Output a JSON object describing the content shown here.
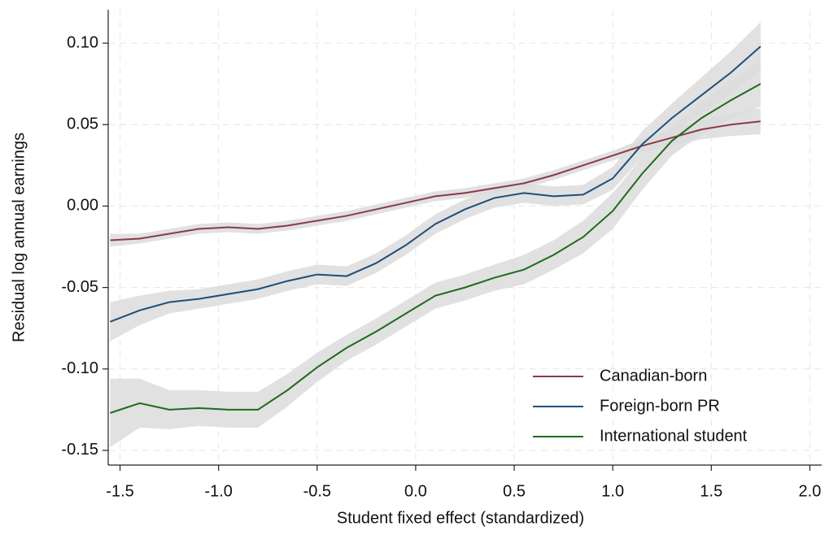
{
  "chart_data": {
    "type": "line",
    "xlabel": "Student fixed effect (standardized)",
    "ylabel": "Residual log annual earnings",
    "x": [
      -1.55,
      -1.4,
      -1.25,
      -1.1,
      -0.95,
      -0.8,
      -0.65,
      -0.5,
      -0.35,
      -0.2,
      -0.05,
      0.1,
      0.25,
      0.4,
      0.55,
      0.7,
      0.85,
      1.0,
      1.15,
      1.3,
      1.45,
      1.6,
      1.75
    ],
    "series": [
      {
        "name": "Canadian-born",
        "color": "#8b3a48",
        "values": [
          -0.021,
          -0.02,
          -0.017,
          -0.014,
          -0.013,
          -0.014,
          -0.012,
          -0.009,
          -0.006,
          -0.002,
          0.002,
          0.006,
          0.008,
          0.011,
          0.014,
          0.019,
          0.025,
          0.031,
          0.037,
          0.042,
          0.047,
          0.05,
          0.052
        ],
        "ci": [
          0.004,
          0.003,
          0.003,
          0.003,
          0.003,
          0.003,
          0.003,
          0.003,
          0.003,
          0.003,
          0.003,
          0.003,
          0.003,
          0.003,
          0.003,
          0.003,
          0.003,
          0.003,
          0.004,
          0.005,
          0.006,
          0.007,
          0.008
        ]
      },
      {
        "name": "Foreign-born PR",
        "color": "#1f4e79",
        "values": [
          -0.071,
          -0.064,
          -0.059,
          -0.057,
          -0.054,
          -0.051,
          -0.046,
          -0.042,
          -0.043,
          -0.035,
          -0.024,
          -0.011,
          -0.002,
          0.005,
          0.008,
          0.006,
          0.007,
          0.017,
          0.038,
          0.054,
          0.068,
          0.082,
          0.098
        ],
        "ci": [
          0.012,
          0.009,
          0.007,
          0.006,
          0.006,
          0.006,
          0.006,
          0.006,
          0.006,
          0.006,
          0.006,
          0.006,
          0.006,
          0.006,
          0.006,
          0.006,
          0.006,
          0.007,
          0.008,
          0.009,
          0.011,
          0.013,
          0.015
        ]
      },
      {
        "name": "International student",
        "color": "#1e6b1e",
        "values": [
          -0.127,
          -0.121,
          -0.125,
          -0.124,
          -0.125,
          -0.125,
          -0.113,
          -0.099,
          -0.087,
          -0.077,
          -0.066,
          -0.055,
          -0.05,
          -0.044,
          -0.039,
          -0.03,
          -0.019,
          -0.003,
          0.02,
          0.04,
          0.054,
          0.065,
          0.075
        ],
        "ci": [
          0.021,
          0.015,
          0.012,
          0.011,
          0.011,
          0.011,
          0.01,
          0.009,
          0.008,
          0.008,
          0.008,
          0.008,
          0.008,
          0.008,
          0.009,
          0.009,
          0.01,
          0.011,
          0.01,
          0.009,
          0.01,
          0.012,
          0.014
        ]
      }
    ],
    "xlim": [
      -1.56,
      2.06
    ],
    "ylim": [
      -0.159,
      0.1205
    ],
    "xticks": [
      {
        "value": -1.5,
        "label": "-1.5"
      },
      {
        "value": -1.0,
        "label": "-1.0"
      },
      {
        "value": -0.5,
        "label": "-0.5"
      },
      {
        "value": 0,
        "label": "0.0"
      },
      0.5,
      {
        "value": 1.0,
        "label": "1.0"
      },
      1.5,
      {
        "value": 2.0,
        "label": "2.0"
      }
    ],
    "yticks": [
      {
        "value": -0.15,
        "label": "-0.15"
      },
      {
        "value": -0.1,
        "label": "-0.10"
      },
      {
        "value": -0.05,
        "label": "-0.05"
      },
      {
        "value": 0,
        "label": "0.00"
      },
      {
        "value": 0.05,
        "label": "0.05"
      },
      {
        "value": 0.1,
        "label": "0.10"
      }
    ],
    "grid": true,
    "band_color": "#dcdcdc",
    "legend": "lower right"
  }
}
